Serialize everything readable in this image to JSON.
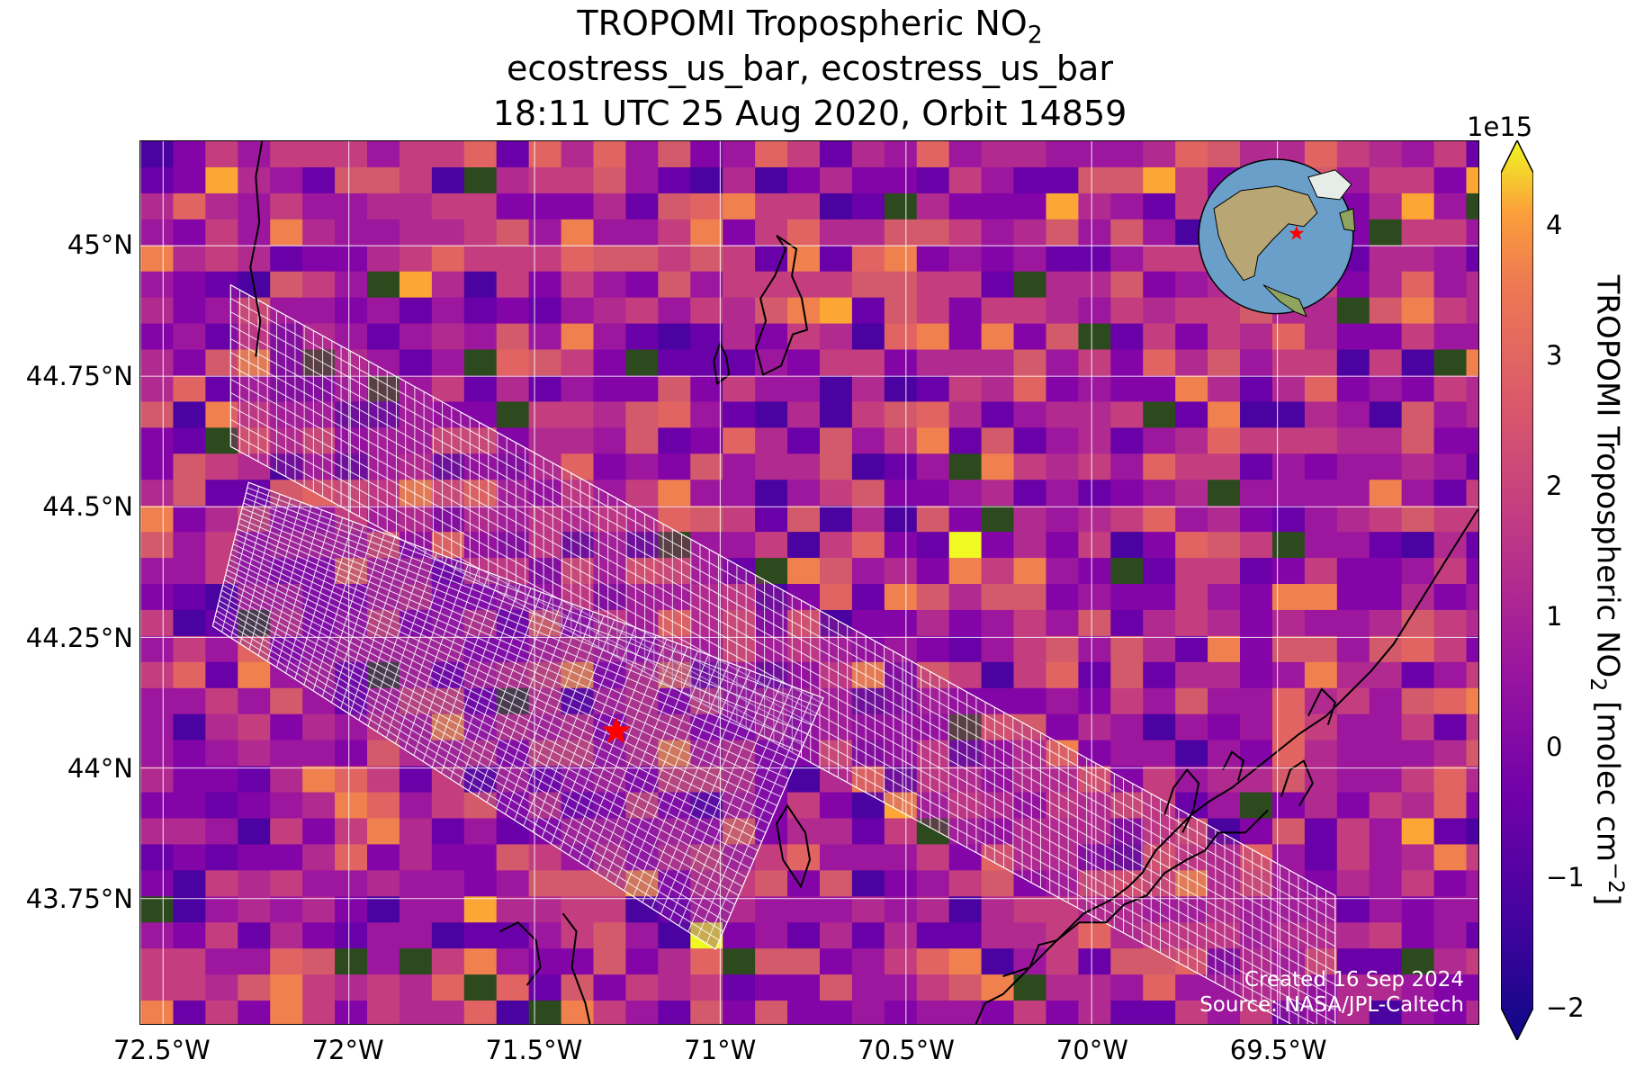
{
  "title": {
    "line1_prefix": "TROPOMI Tropospheric NO",
    "line1_sub": "2",
    "line2": "ecostress_us_bar, ecostress_us_bar",
    "line3": "18:11 UTC 25 Aug 2020, Orbit 14859"
  },
  "x_ticks": [
    "72.5°W",
    "72°W",
    "71.5°W",
    "71°W",
    "70.5°W",
    "70°W",
    "69.5°W"
  ],
  "y_ticks": [
    "45°N",
    "44.75°N",
    "44.5°N",
    "44.25°N",
    "44°N",
    "43.75°N"
  ],
  "colorbar": {
    "exponent": "1e15",
    "ticks": [
      "4",
      "3",
      "2",
      "1",
      "0",
      "−1",
      "−2"
    ],
    "label_prefix": "TROPOMI Tropospheric NO",
    "label_sub": "2",
    "label_mid": " [molec cm",
    "label_sup": "−2",
    "label_suffix": "]",
    "vmin": -2,
    "vmax": 4.4
  },
  "map_extent": {
    "lon": [
      -72.56,
      -68.96
    ],
    "lat": [
      43.51,
      45.2
    ]
  },
  "target_marker": {
    "lon": -71.28,
    "lat": 44.07,
    "color": "#ff0000"
  },
  "credits": {
    "created": "Created 16 Sep 2024",
    "source": "Source: NASA/JPL-Caltech"
  }
}
